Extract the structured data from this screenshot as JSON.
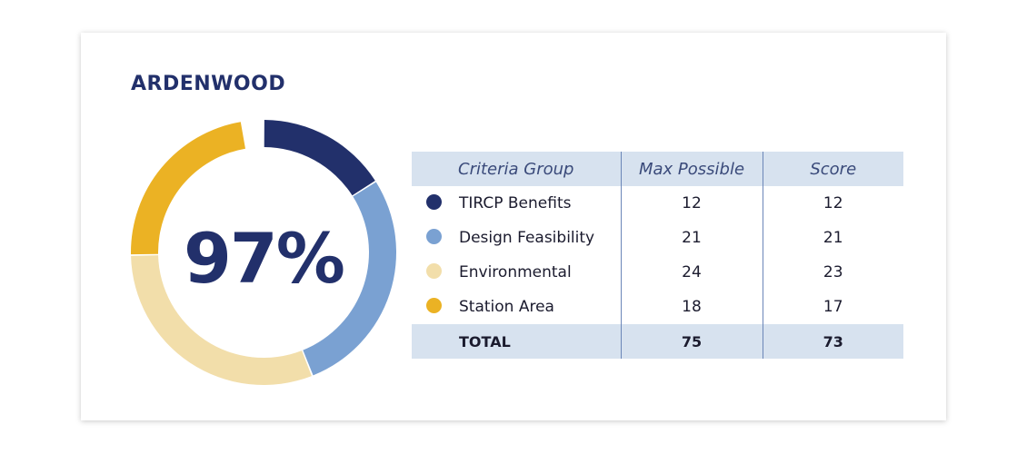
{
  "title": "ARDENWOOD",
  "score_percent_label": "97%",
  "table": {
    "headers": [
      "Criteria Group",
      "Max Possible",
      "Score"
    ],
    "rows": [
      {
        "name": "TIRCP Benefits",
        "max": "12",
        "score": "12",
        "color": "#22306b"
      },
      {
        "name": "Design Feasibility",
        "max": "21",
        "score": "21",
        "color": "#7aa1d2"
      },
      {
        "name": "Environmental",
        "max": "24",
        "score": "23",
        "color": "#f2deaa"
      },
      {
        "name": "Station Area",
        "max": "18",
        "score": "17",
        "color": "#ebb224"
      }
    ],
    "total": {
      "label": "TOTAL",
      "max": "75",
      "score": "73"
    }
  },
  "chart_data": {
    "type": "pie",
    "style": "donut",
    "center_label": "97%",
    "categories": [
      "TIRCP Benefits",
      "Design Feasibility",
      "Environmental",
      "Station Area"
    ],
    "values": [
      12,
      21,
      23,
      17
    ],
    "colors": [
      "#22306b",
      "#7aa1d2",
      "#f2deaa",
      "#ebb224"
    ],
    "total_possible": 75,
    "unfilled_gap": 2
  }
}
